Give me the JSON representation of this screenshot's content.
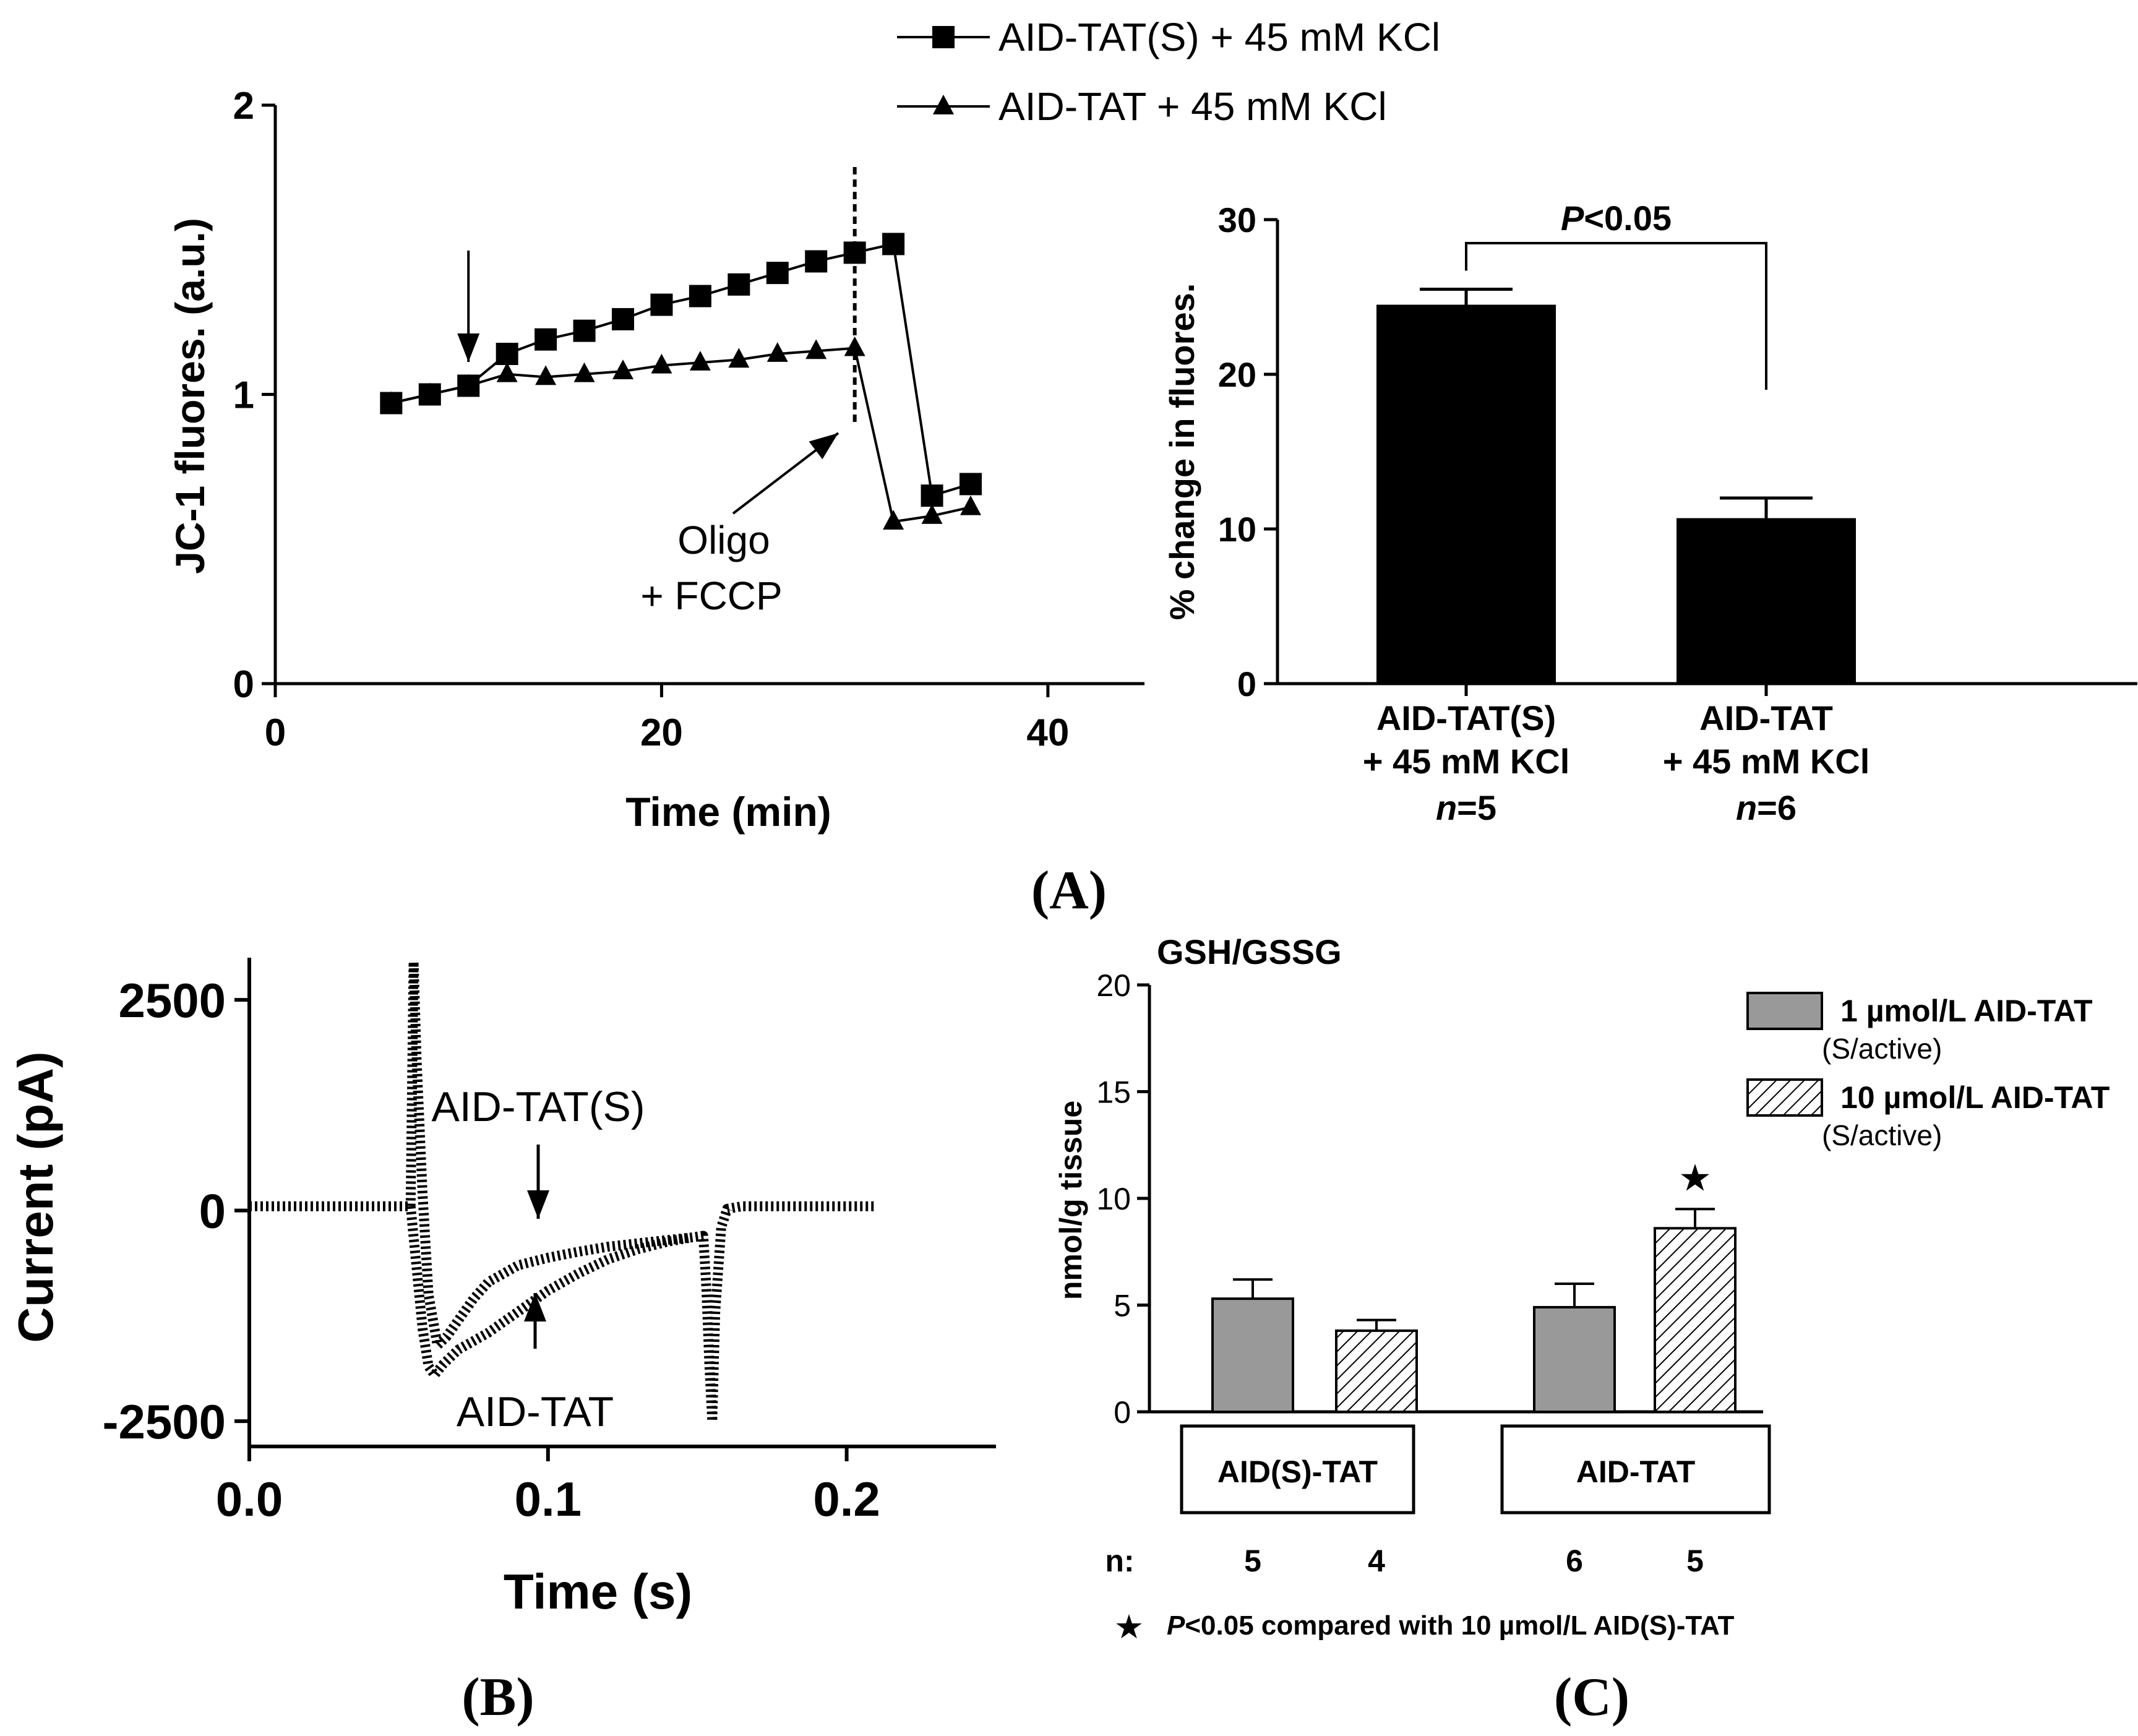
{
  "panel_labels": [
    "(A)",
    "(B)",
    "(C)"
  ],
  "chart_data": [
    {
      "id": "A-left",
      "type": "line",
      "xlabel": "Time (min)",
      "ylabel": "JC-1 fluores. (a.u.)",
      "xlim": [
        0,
        45
      ],
      "ylim": [
        0,
        2
      ],
      "xticks": [
        0,
        20,
        40
      ],
      "yticks": [
        0,
        1,
        2
      ],
      "series": [
        {
          "name": "AID-TAT(S) + 45 mM KCl",
          "marker": "square",
          "x": [
            6,
            8,
            10,
            12,
            14,
            16,
            18,
            20,
            22,
            24,
            26,
            28,
            30,
            32,
            34,
            36
          ],
          "y": [
            0.97,
            1.0,
            1.03,
            1.14,
            1.19,
            1.22,
            1.26,
            1.31,
            1.34,
            1.38,
            1.42,
            1.46,
            1.49,
            1.52,
            0.65,
            0.69
          ]
        },
        {
          "name": "AID-TAT + 45 mM KCl",
          "marker": "triangle",
          "x": [
            6,
            8,
            10,
            12,
            14,
            16,
            18,
            20,
            22,
            24,
            26,
            28,
            30,
            32,
            34,
            36
          ],
          "y": [
            0.97,
            1.0,
            1.03,
            1.07,
            1.06,
            1.07,
            1.08,
            1.1,
            1.11,
            1.12,
            1.14,
            1.15,
            1.16,
            0.56,
            0.58,
            0.61
          ]
        }
      ],
      "annotations": {
        "event_line_x": 30,
        "application_arrow_x": 10,
        "drug_label_line1": "Oligo",
        "drug_label_line2": "+ FCCP"
      }
    },
    {
      "id": "A-right",
      "type": "bar",
      "ylabel": "% change in fluores.",
      "ylim": [
        0,
        30
      ],
      "yticks": [
        0,
        10,
        20,
        30
      ],
      "categories": [
        "AID-TAT(S) + 45 mM KCl",
        "AID-TAT + 45 mM KCl"
      ],
      "category_lines": [
        [
          "AID-TAT(S)",
          "+ 45 mM KCl"
        ],
        [
          "AID-TAT",
          "+ 45 mM KCl"
        ]
      ],
      "n_labels": [
        [
          "n",
          "=5"
        ],
        [
          "n",
          "=6"
        ]
      ],
      "values": [
        24.5,
        10.7
      ],
      "errors": [
        1.0,
        1.3
      ],
      "color": "#000000",
      "significance": {
        "italic": "P",
        "rest": "<0.05"
      }
    },
    {
      "id": "B",
      "type": "line",
      "xlabel": "Time (s)",
      "ylabel": "Current (pA)",
      "xlim": [
        0,
        0.25
      ],
      "ylim": [
        -2800,
        3000
      ],
      "xticks": [
        "0.0",
        "0.1",
        "0.2"
      ],
      "yticks": [
        "-2500",
        "0",
        "2500"
      ],
      "trace_labels": [
        "AID-TAT(S)",
        "AID-TAT"
      ],
      "series": [
        {
          "name": "AID-TAT(S)",
          "x": [
            0.0,
            0.054,
            0.055,
            0.056,
            0.058,
            0.06,
            0.063,
            0.066,
            0.07,
            0.075,
            0.08,
            0.09,
            0.1,
            0.11,
            0.12,
            0.13,
            0.14,
            0.148,
            0.152,
            0.153,
            0.154,
            0.155,
            0.156,
            0.158,
            0.16,
            0.165,
            0.17,
            0.2,
            0.21
          ],
          "y": [
            50,
            50,
            2950,
            1800,
            200,
            -1000,
            -1600,
            -1500,
            -1300,
            -1050,
            -850,
            -650,
            -560,
            -490,
            -430,
            -390,
            -350,
            -320,
            -300,
            -900,
            -1800,
            -2500,
            -1200,
            -200,
            20,
            50,
            50,
            50,
            50
          ]
        },
        {
          "name": "AID-TAT",
          "x": [
            0.054,
            0.058,
            0.06,
            0.062,
            0.065,
            0.07,
            0.08,
            0.09,
            0.1,
            0.11,
            0.12,
            0.13,
            0.14,
            0.148
          ],
          "y": [
            50,
            -1400,
            -1850,
            -1950,
            -1820,
            -1650,
            -1450,
            -1200,
            -950,
            -750,
            -580,
            -460,
            -370,
            -320
          ]
        }
      ]
    },
    {
      "id": "C",
      "type": "bar",
      "title": "GSH/GSSG",
      "ylabel": "nmol/g tissue",
      "ylim": [
        0,
        20
      ],
      "yticks": [
        0,
        5,
        10,
        15,
        20
      ],
      "groups": [
        "AID(S)-TAT",
        "AID-TAT"
      ],
      "n_title": "n:",
      "series": [
        {
          "name": "1 µmol/L AID-TAT",
          "sub": "(S/active)",
          "fill": "gray",
          "color": "#999999",
          "values": [
            5.3,
            4.9
          ],
          "errors": [
            0.9,
            1.1
          ],
          "n": [
            5,
            6
          ]
        },
        {
          "name": "10 µmol/L AID-TAT",
          "sub": "(S/active)",
          "fill": "hatch",
          "color": "#ffffff",
          "values": [
            3.8,
            8.6
          ],
          "errors": [
            0.5,
            0.9
          ],
          "n": [
            4,
            5
          ]
        }
      ],
      "significant_bar": {
        "group": 1,
        "series": 1,
        "symbol": "★"
      },
      "footnote": {
        "symbol": "★",
        "italic": "P",
        "rest": "<0.05 compared with 10 µmol/L AID(S)-TAT"
      }
    }
  ]
}
